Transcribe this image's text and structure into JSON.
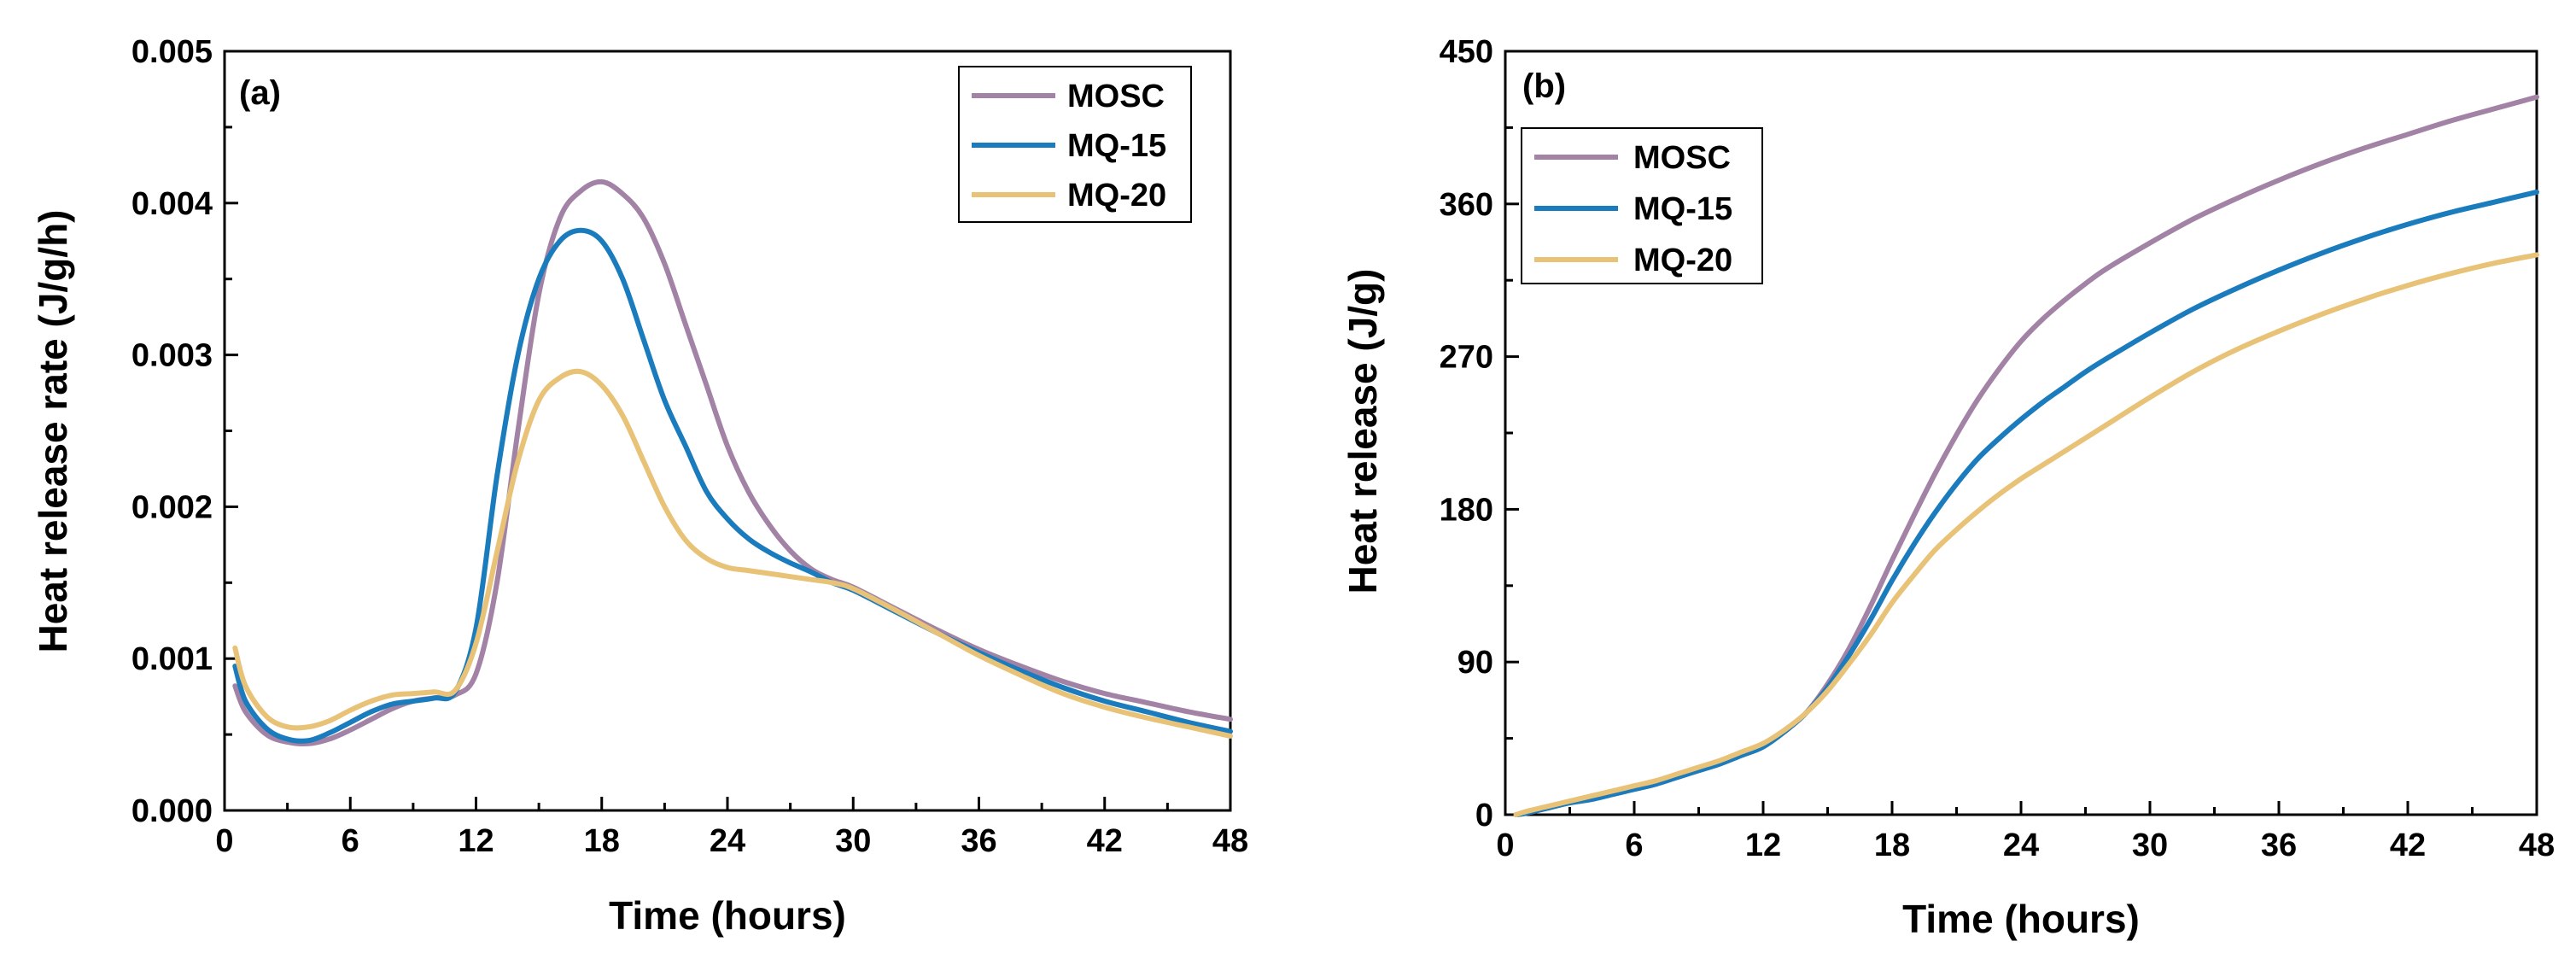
{
  "chart_data": [
    {
      "type": "line",
      "panel_label": "(a)",
      "xlabel": "Time (hours)",
      "ylabel": "Heat release rate (J/g/h)",
      "xlim": [
        0,
        48
      ],
      "ylim": [
        0,
        0.005
      ],
      "xticks": [
        0,
        6,
        12,
        18,
        24,
        30,
        36,
        42,
        48
      ],
      "xtick_labels": [
        "0",
        "6",
        "12",
        "18",
        "24",
        "30",
        "36",
        "42",
        "48"
      ],
      "yticks": [
        0,
        0.001,
        0.002,
        0.003,
        0.004,
        0.005
      ],
      "ytick_labels": [
        "0.000",
        "0.001",
        "0.002",
        "0.003",
        "0.004",
        "0.005"
      ],
      "legend_position": "top-right",
      "x": [
        0.5,
        1,
        2,
        3,
        4,
        5,
        6,
        7,
        8,
        9,
        10,
        11,
        12,
        13,
        14,
        15,
        16,
        17,
        18,
        19,
        20,
        21,
        22,
        23,
        24,
        25,
        26,
        27,
        28,
        29,
        30,
        32,
        34,
        36,
        38,
        40,
        42,
        44,
        46,
        48
      ],
      "series": [
        {
          "name": "MOSC",
          "color": "#A283A6",
          "values": [
            0.00082,
            0.00065,
            0.0005,
            0.00045,
            0.00044,
            0.00047,
            0.00053,
            0.0006,
            0.00067,
            0.00072,
            0.00074,
            0.00076,
            0.0009,
            0.0015,
            0.0025,
            0.0034,
            0.0039,
            0.00408,
            0.00414,
            0.00406,
            0.0039,
            0.0036,
            0.0032,
            0.0028,
            0.0024,
            0.0021,
            0.00188,
            0.00171,
            0.00159,
            0.00152,
            0.00147,
            0.00133,
            0.00119,
            0.00106,
            0.00095,
            0.00085,
            0.00077,
            0.00071,
            0.00065,
            0.0006
          ]
        },
        {
          "name": "MQ-15",
          "color": "#1A7BBD",
          "values": [
            0.00095,
            0.00072,
            0.00054,
            0.00047,
            0.00046,
            0.00051,
            0.00058,
            0.00065,
            0.0007,
            0.00072,
            0.00074,
            0.00078,
            0.0012,
            0.0022,
            0.003,
            0.0035,
            0.00375,
            0.00382,
            0.00375,
            0.0035,
            0.0031,
            0.0027,
            0.0024,
            0.0021,
            0.00192,
            0.00179,
            0.0017,
            0.00163,
            0.00157,
            0.0015,
            0.00145,
            0.00131,
            0.00117,
            0.00104,
            0.00092,
            0.00081,
            0.00072,
            0.00065,
            0.00058,
            0.00052
          ]
        },
        {
          "name": "MQ-20",
          "color": "#E8C277",
          "values": [
            0.00107,
            0.00082,
            0.00062,
            0.00055,
            0.00055,
            0.00059,
            0.00066,
            0.00072,
            0.00076,
            0.00077,
            0.00078,
            0.00079,
            0.0011,
            0.0017,
            0.0023,
            0.0027,
            0.00285,
            0.00289,
            0.0028,
            0.0026,
            0.0023,
            0.002,
            0.00178,
            0.00166,
            0.0016,
            0.00158,
            0.00156,
            0.00154,
            0.00152,
            0.0015,
            0.00146,
            0.00132,
            0.00117,
            0.00102,
            0.00089,
            0.00077,
            0.00068,
            0.00061,
            0.00055,
            0.00049
          ]
        }
      ]
    },
    {
      "type": "line",
      "panel_label": "(b)",
      "xlabel": "Time (hours)",
      "ylabel": "Heat release (J/g)",
      "xlim": [
        0,
        48
      ],
      "ylim": [
        0,
        450
      ],
      "xticks": [
        0,
        6,
        12,
        18,
        24,
        30,
        36,
        42,
        48
      ],
      "xtick_labels": [
        "0",
        "6",
        "12",
        "18",
        "24",
        "30",
        "36",
        "42",
        "48"
      ],
      "yticks": [
        0,
        90,
        180,
        270,
        360,
        450
      ],
      "ytick_labels": [
        "0",
        "90",
        "180",
        "270",
        "360",
        "450"
      ],
      "legend_position": "top-left",
      "x": [
        0.5,
        1,
        2,
        3,
        4,
        5,
        6,
        7,
        8,
        9,
        10,
        11,
        12,
        13,
        14,
        15,
        16,
        17,
        18,
        19,
        20,
        21,
        22,
        23,
        24,
        25,
        26,
        27,
        28,
        30,
        32,
        34,
        36,
        38,
        40,
        42,
        44,
        46,
        48
      ],
      "series": [
        {
          "name": "MOSC",
          "color": "#A283A6",
          "values": [
            0,
            1,
            4,
            7,
            9,
            12,
            15,
            18,
            22,
            26,
            30,
            35,
            40,
            49,
            60,
            77,
            98,
            123,
            150,
            176,
            201,
            224,
            245,
            263,
            279,
            292,
            303,
            313,
            322,
            337,
            351,
            363,
            374,
            384,
            393,
            401,
            409,
            416,
            423
          ]
        },
        {
          "name": "MQ-15",
          "color": "#1A7BBD",
          "values": [
            0,
            1,
            4,
            7,
            9,
            12,
            15,
            18,
            22,
            26,
            30,
            35,
            40,
            49,
            60,
            75,
            94,
            115,
            138,
            159,
            178,
            195,
            210,
            222,
            233,
            243,
            252,
            261,
            269,
            284,
            298,
            310,
            321,
            331,
            340,
            348,
            355,
            361,
            367
          ]
        },
        {
          "name": "MQ-20",
          "color": "#E8C277",
          "values": [
            0,
            2,
            5,
            8,
            11,
            14,
            17,
            20,
            24,
            28,
            32,
            37,
            42,
            50,
            60,
            73,
            89,
            106,
            125,
            141,
            156,
            168,
            179,
            189,
            198,
            206,
            214,
            222,
            230,
            246,
            261,
            274,
            285,
            295,
            304,
            312,
            319,
            325,
            330
          ]
        }
      ]
    }
  ]
}
